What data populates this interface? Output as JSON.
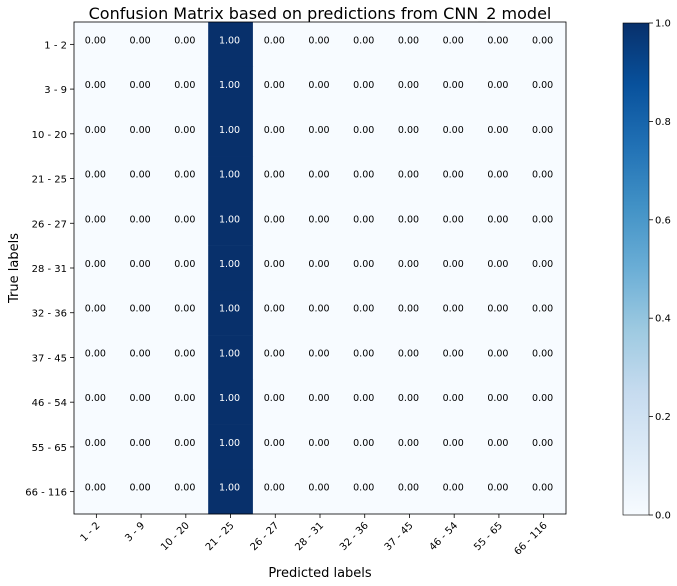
{
  "chart_data": {
    "type": "heatmap",
    "title": "Confusion Matrix based on predictions from CNN_2 model",
    "xlabel": "Predicted labels",
    "ylabel": "True labels",
    "x_categories": [
      "1 - 2",
      "3 - 9",
      "10 - 20",
      "21 - 25",
      "26 - 27",
      "28 - 31",
      "32 - 36",
      "37 - 45",
      "46 - 54",
      "55 - 65",
      "66 - 116"
    ],
    "y_categories": [
      "1 - 2",
      "3 - 9",
      "10 - 20",
      "21 - 25",
      "26 - 27",
      "28 - 31",
      "32 - 36",
      "37 - 45",
      "46 - 54",
      "55 - 65",
      "66 - 116"
    ],
    "values": [
      [
        0,
        0,
        0,
        1,
        0,
        0,
        0,
        0,
        0,
        0,
        0
      ],
      [
        0,
        0,
        0,
        1,
        0,
        0,
        0,
        0,
        0,
        0,
        0
      ],
      [
        0,
        0,
        0,
        1,
        0,
        0,
        0,
        0,
        0,
        0,
        0
      ],
      [
        0,
        0,
        0,
        1,
        0,
        0,
        0,
        0,
        0,
        0,
        0
      ],
      [
        0,
        0,
        0,
        1,
        0,
        0,
        0,
        0,
        0,
        0,
        0
      ],
      [
        0,
        0,
        0,
        1,
        0,
        0,
        0,
        0,
        0,
        0,
        0
      ],
      [
        0,
        0,
        0,
        1,
        0,
        0,
        0,
        0,
        0,
        0,
        0
      ],
      [
        0,
        0,
        0,
        1,
        0,
        0,
        0,
        0,
        0,
        0,
        0
      ],
      [
        0,
        0,
        0,
        1,
        0,
        0,
        0,
        0,
        0,
        0,
        0
      ],
      [
        0,
        0,
        0,
        1,
        0,
        0,
        0,
        0,
        0,
        0,
        0
      ],
      [
        0,
        0,
        0,
        1,
        0,
        0,
        0,
        0,
        0,
        0,
        0
      ]
    ],
    "value_format": "0.00",
    "colormap": "Blues",
    "colorbar": {
      "ticks": [
        "0.0",
        "0.2",
        "0.4",
        "0.6",
        "0.8",
        "1.0"
      ],
      "range": [
        0,
        1
      ]
    },
    "colors": {
      "low": "#f7fbff",
      "high": "#08306b"
    }
  }
}
